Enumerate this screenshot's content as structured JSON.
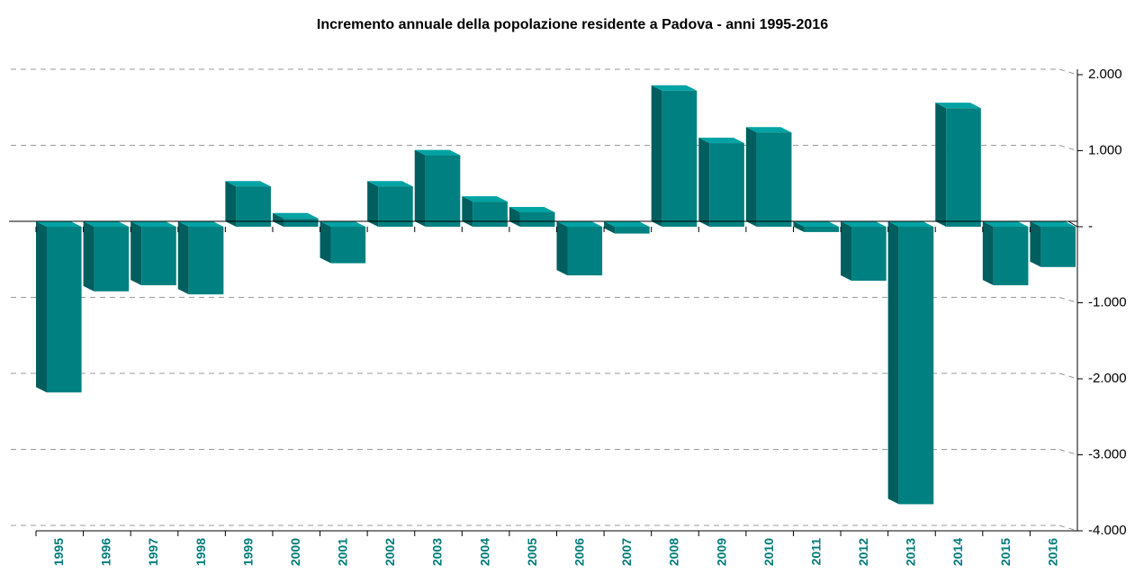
{
  "chart_data": {
    "type": "bar",
    "title": "Incremento annuale della popolazione residente a Padova - anni 1995-2016",
    "categories": [
      "1995",
      "1996",
      "1997",
      "1998",
      "1999",
      "2000",
      "2001",
      "2002",
      "2003",
      "2004",
      "2005",
      "2006",
      "2007",
      "2008",
      "2009",
      "2010",
      "2011",
      "2012",
      "2013",
      "2014",
      "2015",
      "2016"
    ],
    "values": [
      -2180,
      -850,
      -770,
      -890,
      530,
      110,
      -480,
      530,
      940,
      330,
      190,
      -640,
      -90,
      1790,
      1100,
      1240,
      -70,
      -710,
      -3650,
      1560,
      -770,
      -530
    ],
    "color": "#008080",
    "ylim": [
      -4000,
      2000
    ],
    "yticks": [
      {
        "value": 2000,
        "label": "2.000"
      },
      {
        "value": 1000,
        "label": "1.000"
      },
      {
        "value": 0,
        "label": "-"
      },
      {
        "value": -1000,
        "label": "-1.000"
      },
      {
        "value": -2000,
        "label": "-2.000"
      },
      {
        "value": -3000,
        "label": "-3.000"
      },
      {
        "value": -4000,
        "label": "-4.000"
      }
    ],
    "grid": true
  }
}
